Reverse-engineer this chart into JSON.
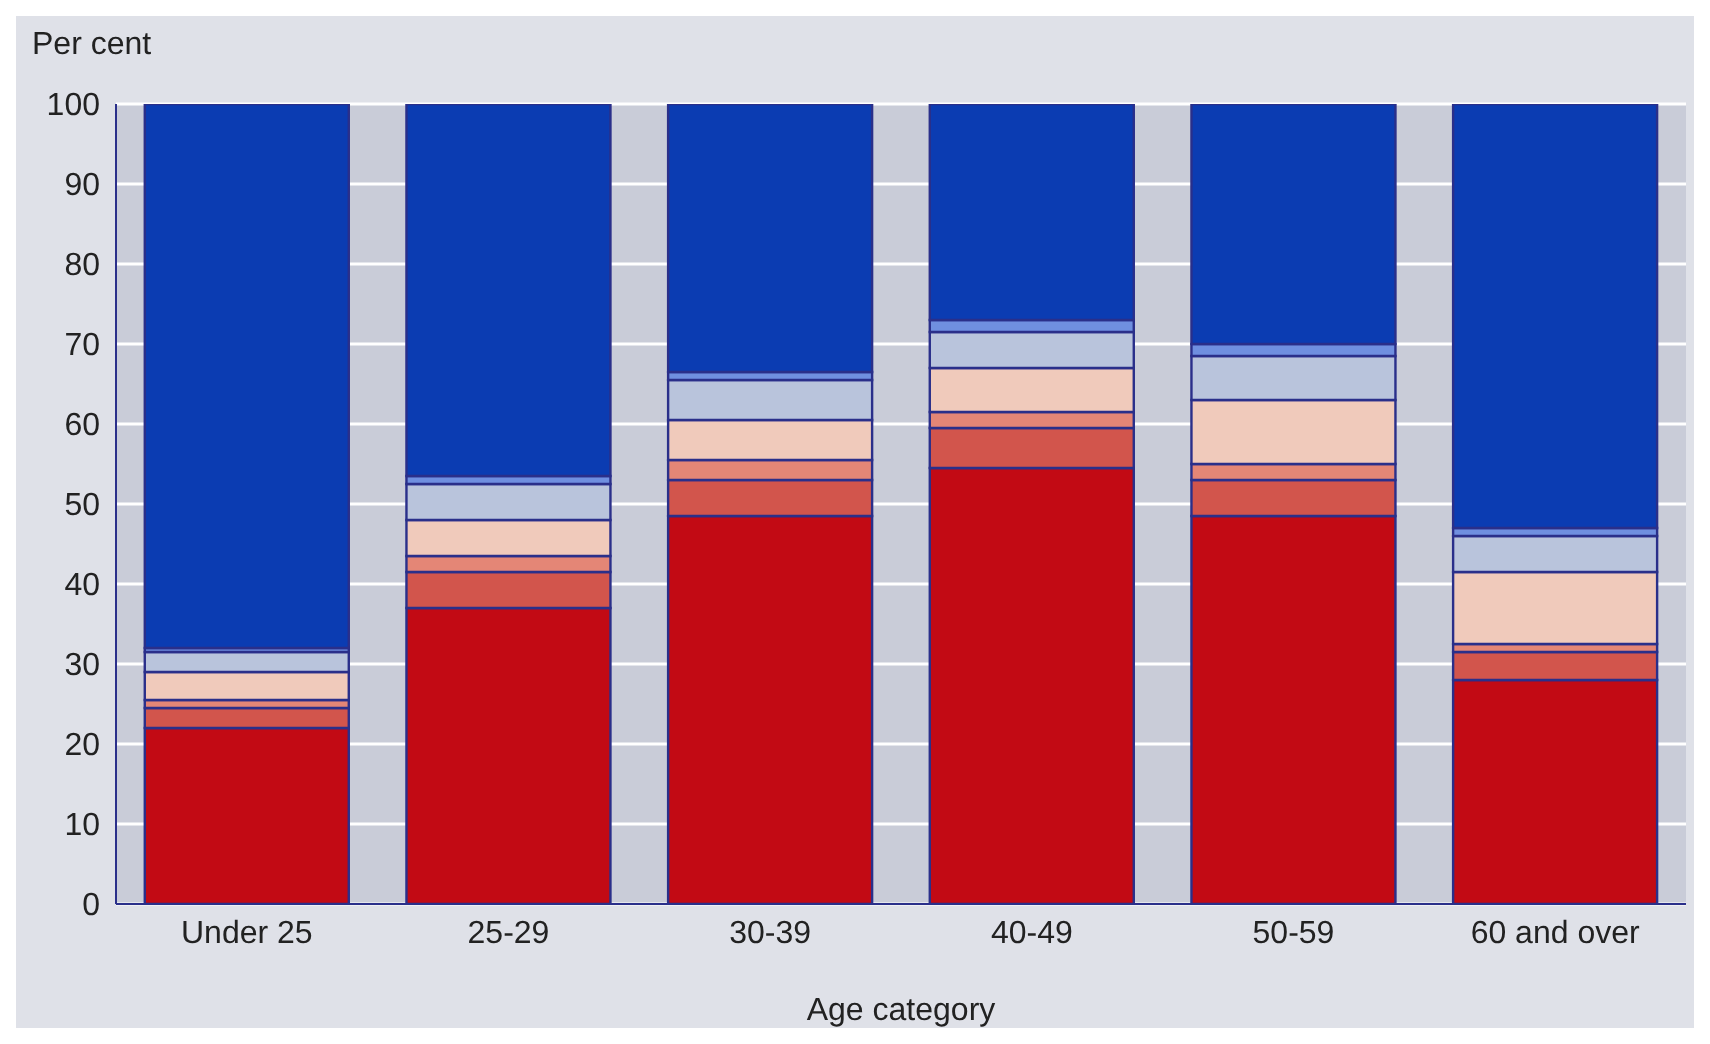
{
  "chart_data": {
    "type": "bar",
    "stacked": true,
    "xlabel": "Age category",
    "ylabel": "Per cent",
    "categories": [
      "Under 25",
      "25-29",
      "30-39",
      "40-49",
      "50-59",
      "60 and over"
    ],
    "series": [
      {
        "color": "#c20a14",
        "values": [
          22,
          37,
          48.5,
          54.5,
          48.5,
          28
        ]
      },
      {
        "color": "#d2554c",
        "values": [
          2.5,
          4.5,
          4.5,
          5,
          4.5,
          3.5
        ]
      },
      {
        "color": "#e48676",
        "values": [
          1,
          2,
          2.5,
          2,
          2,
          1
        ]
      },
      {
        "color": "#f0cabb",
        "values": [
          3.5,
          4.5,
          5,
          5.5,
          8,
          9
        ]
      },
      {
        "color": "#b9c4dc",
        "values": [
          2.5,
          4.5,
          5,
          4.5,
          5.5,
          4.5
        ]
      },
      {
        "color": "#6f8fe0",
        "values": [
          0.5,
          1,
          1,
          1.5,
          1.5,
          1
        ]
      },
      {
        "color": "#0b3cb2",
        "values": [
          68,
          46.5,
          33.5,
          27,
          30,
          53
        ]
      }
    ],
    "ylim": [
      0,
      100
    ],
    "yticks": [
      0,
      10,
      20,
      30,
      40,
      50,
      60,
      70,
      80,
      90,
      100
    ],
    "grid": "y",
    "legend": false
  }
}
